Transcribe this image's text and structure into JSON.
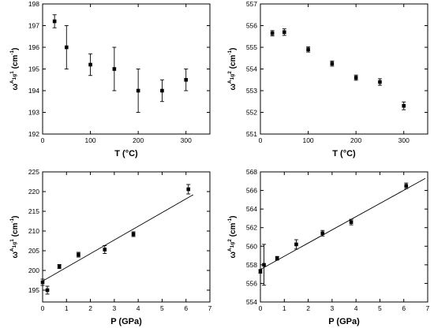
{
  "figure": {
    "panels": [
      {
        "ylabel": {
          "main": "ω",
          "sup": "A",
          "sub": "1g",
          "super2": "1",
          "units": " (cm",
          "units_sup": "-1",
          "units_close": ")"
        }
      },
      {
        "ylabel": {
          "main": "ω",
          "sup": "A",
          "sub": "1g",
          "super2": "2",
          "units": " (cm",
          "units_sup": "-1",
          "units_close": ")"
        }
      },
      {
        "ylabel": {
          "main": "ω",
          "sup": "A",
          "sub": "1g",
          "super2": "1",
          "units": " (cm",
          "units_sup": "-1",
          "units_close": ")"
        }
      },
      {
        "ylabel": {
          "main": "ω",
          "sup": "A",
          "sub": "1g",
          "super2": "2",
          "units": " (cm",
          "units_sup": "-1",
          "units_close": ")"
        }
      }
    ]
  },
  "chart_data": [
    {
      "type": "scatter",
      "title": "",
      "xlabel": "T (°C)",
      "ylabel": "ω^A1g 1 (cm-1)",
      "xlim": [
        0,
        350
      ],
      "ylim": [
        192,
        198
      ],
      "xticks": [
        0,
        100,
        200,
        300
      ],
      "yticks": [
        192,
        193,
        194,
        195,
        196,
        197,
        198
      ],
      "grid": false,
      "fit_line": false,
      "series": [
        {
          "x": [
            25,
            50,
            100,
            150,
            200,
            250,
            300
          ],
          "y": [
            197.2,
            196.0,
            195.2,
            195.0,
            194.0,
            194.0,
            194.5
          ],
          "yerr": [
            0.3,
            1.0,
            0.5,
            1.0,
            1.0,
            0.5,
            0.5
          ]
        }
      ]
    },
    {
      "type": "scatter",
      "title": "",
      "xlabel": "T (°C)",
      "ylabel": "ω^A1g 2 (cm-1)",
      "xlim": [
        0,
        350
      ],
      "ylim": [
        551,
        557
      ],
      "xticks": [
        0,
        100,
        200,
        300
      ],
      "yticks": [
        551,
        552,
        553,
        554,
        555,
        556,
        557
      ],
      "grid": false,
      "fit_line": false,
      "series": [
        {
          "x": [
            25,
            50,
            100,
            150,
            200,
            250,
            300
          ],
          "y": [
            555.65,
            555.7,
            554.9,
            554.25,
            553.6,
            553.4,
            552.3
          ],
          "yerr": [
            0.12,
            0.15,
            0.12,
            0.12,
            0.12,
            0.15,
            0.18
          ]
        }
      ]
    },
    {
      "type": "scatter",
      "title": "",
      "xlabel": "P (GPa)",
      "ylabel": "ω^A1g 1 (cm-1)",
      "xlim": [
        0,
        7
      ],
      "ylim": [
        192,
        225
      ],
      "xticks": [
        0,
        1,
        2,
        3,
        4,
        5,
        6,
        7
      ],
      "yticks": [
        195,
        200,
        205,
        210,
        215,
        220,
        225
      ],
      "grid": false,
      "fit_line": {
        "x": [
          0,
          6.3
        ],
        "y": [
          197.3,
          219.2
        ]
      },
      "series": [
        {
          "x": [
            0.0,
            0.2,
            0.7,
            1.5,
            2.6,
            3.8,
            6.1
          ],
          "y": [
            197.0,
            195.0,
            201.0,
            204.0,
            205.3,
            209.2,
            220.6
          ],
          "yerr": [
            0.8,
            1.0,
            0.5,
            0.6,
            1.0,
            0.6,
            1.2
          ]
        }
      ]
    },
    {
      "type": "scatter",
      "title": "",
      "xlabel": "P (GPa)",
      "ylabel": "ω^A1g 2 (cm-1)",
      "xlim": [
        0,
        7
      ],
      "ylim": [
        554,
        568
      ],
      "xticks": [
        0,
        1,
        2,
        3,
        4,
        5,
        6,
        7
      ],
      "yticks": [
        554,
        556,
        558,
        560,
        562,
        564,
        566,
        568
      ],
      "grid": false,
      "fit_line": {
        "x": [
          0,
          6.9
        ],
        "y": [
          557.5,
          567.3
        ]
      },
      "series": [
        {
          "x": [
            0.0,
            0.15,
            0.7,
            1.5,
            2.6,
            3.8,
            6.1
          ],
          "y": [
            557.3,
            558.0,
            558.7,
            560.2,
            561.4,
            562.6,
            566.5
          ],
          "yerr": [
            0.2,
            2.2,
            0.2,
            0.5,
            0.3,
            0.3,
            0.3
          ]
        }
      ]
    }
  ]
}
